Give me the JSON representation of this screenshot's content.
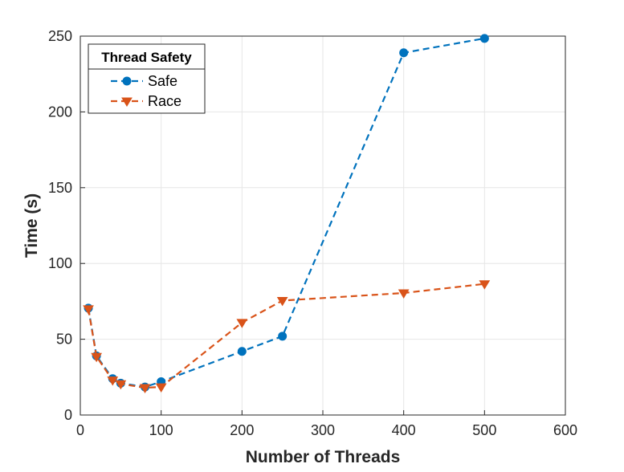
{
  "chart_data": {
    "type": "line",
    "title": "",
    "xlabel": "Number of Threads",
    "ylabel": "Time (s)",
    "xlim": [
      0,
      600
    ],
    "ylim": [
      0,
      250
    ],
    "xticks": [
      0,
      100,
      200,
      300,
      400,
      500,
      600
    ],
    "yticks": [
      0,
      50,
      100,
      150,
      200,
      250
    ],
    "grid": true,
    "legend": {
      "title": "Thread Safety",
      "position": "top-left"
    },
    "series": [
      {
        "name": "Safe",
        "color": "#0072BD",
        "marker": "circle",
        "line_style": "dashed",
        "x": [
          10,
          20,
          40,
          50,
          80,
          100,
          200,
          250,
          400,
          500
        ],
        "y": [
          70.5,
          39,
          24,
          21,
          18.5,
          22,
          42,
          52,
          239,
          248.5
        ]
      },
      {
        "name": "Race",
        "color": "#D95319",
        "marker": "triangle-down",
        "line_style": "dashed",
        "x": [
          10,
          20,
          40,
          50,
          80,
          100,
          200,
          250,
          400,
          500
        ],
        "y": [
          70,
          38.5,
          23,
          20.5,
          18,
          18.5,
          61,
          75.5,
          80.5,
          86.5
        ]
      }
    ]
  }
}
